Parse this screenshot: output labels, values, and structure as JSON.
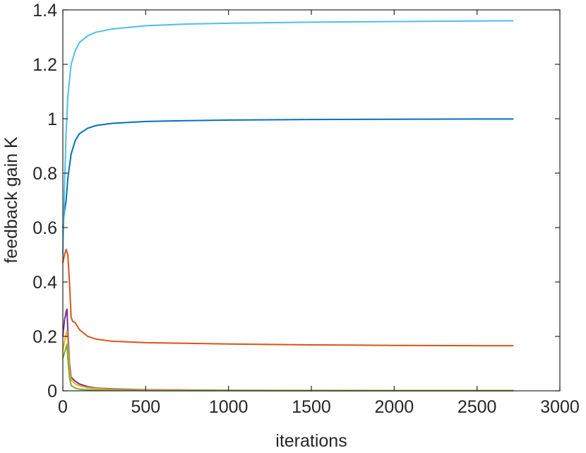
{
  "chart_data": {
    "type": "line",
    "title": "",
    "xlabel": "iterations",
    "ylabel": "feedback gain K",
    "xlim": [
      0,
      3000
    ],
    "ylim": [
      0,
      1.4
    ],
    "xticks": [
      0,
      500,
      1000,
      1500,
      2000,
      2500,
      3000
    ],
    "xtick_labels": [
      "0",
      "500",
      "1000",
      "1500",
      "2000",
      "2500",
      "3000"
    ],
    "yticks": [
      0,
      0.2,
      0.4,
      0.6,
      0.8,
      1.0,
      1.2,
      1.4
    ],
    "ytick_labels": [
      "0",
      "0.2",
      "0.4",
      "0.6",
      "0.8",
      "1",
      "1.2",
      "1.4"
    ],
    "grid": false,
    "legend": "none",
    "series": [
      {
        "color": "#0072BD",
        "x": [
          0,
          5,
          10,
          20,
          30,
          50,
          75,
          100,
          150,
          200,
          300,
          500,
          750,
          1000,
          1500,
          2000,
          2500,
          2720
        ],
        "y": [
          0.6,
          0.63,
          0.66,
          0.7,
          0.78,
          0.87,
          0.92,
          0.945,
          0.965,
          0.975,
          0.983,
          0.99,
          0.993,
          0.995,
          0.997,
          0.998,
          0.999,
          0.999
        ]
      },
      {
        "color": "#4DBEEE",
        "x": [
          0,
          5,
          10,
          20,
          30,
          50,
          75,
          100,
          150,
          200,
          300,
          500,
          750,
          1000,
          1500,
          2000,
          2500,
          2720
        ],
        "y": [
          0.5,
          0.62,
          0.75,
          0.95,
          1.08,
          1.2,
          1.25,
          1.28,
          1.305,
          1.318,
          1.33,
          1.342,
          1.348,
          1.351,
          1.355,
          1.357,
          1.359,
          1.36
        ]
      },
      {
        "color": "#D95319",
        "x": [
          0,
          10,
          20,
          30,
          40,
          50,
          60,
          75,
          100,
          150,
          200,
          300,
          500,
          1000,
          1500,
          2000,
          2500,
          2720
        ],
        "y": [
          0.47,
          0.5,
          0.52,
          0.5,
          0.4,
          0.27,
          0.255,
          0.25,
          0.225,
          0.2,
          0.19,
          0.182,
          0.177,
          0.172,
          0.169,
          0.167,
          0.166,
          0.166
        ]
      },
      {
        "color": "#7E2F8E",
        "x": [
          0,
          10,
          20,
          25,
          30,
          40,
          50,
          75,
          100,
          150,
          200,
          300,
          500,
          1000,
          2000,
          2720
        ],
        "y": [
          0.2,
          0.26,
          0.29,
          0.3,
          0.22,
          0.1,
          0.05,
          0.035,
          0.025,
          0.015,
          0.01,
          0.007,
          0.004,
          0.002,
          0.001,
          0.001
        ]
      },
      {
        "color": "#EDB120",
        "x": [
          0,
          10,
          20,
          25,
          30,
          40,
          50,
          75,
          100,
          150,
          200,
          300,
          500,
          1000,
          2000,
          2720
        ],
        "y": [
          0.15,
          0.18,
          0.21,
          0.22,
          0.17,
          0.08,
          0.04,
          0.025,
          0.018,
          0.011,
          0.008,
          0.005,
          0.003,
          0.0015,
          0.001,
          0.001
        ]
      },
      {
        "color": "#77AC30",
        "x": [
          0,
          10,
          20,
          25,
          30,
          40,
          50,
          75,
          100,
          150,
          200,
          300,
          500,
          1000,
          2000,
          2720
        ],
        "y": [
          0.12,
          0.14,
          0.16,
          0.17,
          0.12,
          0.05,
          0.02,
          0.01,
          0.006,
          0.004,
          0.003,
          0.002,
          0.001,
          0.0005,
          0.0,
          0.0
        ]
      }
    ]
  }
}
